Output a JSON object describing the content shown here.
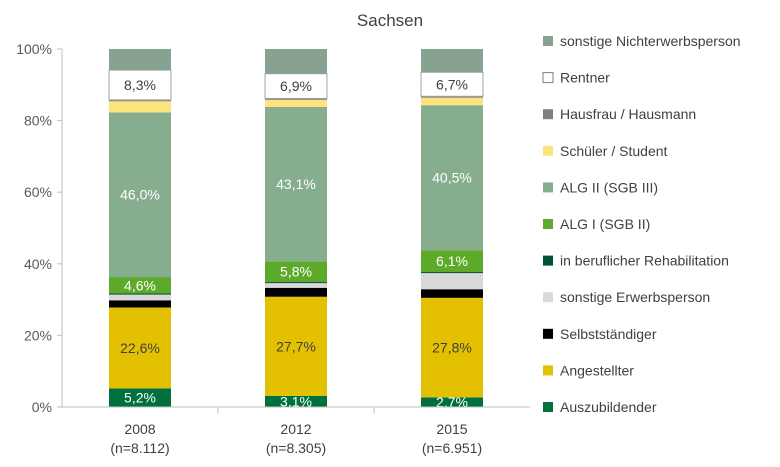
{
  "chart_data": {
    "type": "bar",
    "stacked": true,
    "title": "Sachsen",
    "xlabel": "",
    "ylabel": "",
    "ylim": [
      0,
      100
    ],
    "yticks": [
      "0%",
      "20%",
      "40%",
      "60%",
      "80%",
      "100%"
    ],
    "grid": false,
    "legend_position": "right",
    "categories": [
      {
        "label": "2008",
        "sub": "(n=8.112)"
      },
      {
        "label": "2012",
        "sub": "(n=8.305)"
      },
      {
        "label": "2015",
        "sub": "(n=6.951)"
      }
    ],
    "series": [
      {
        "name": "Auszubildender",
        "color": "#00703C",
        "values": [
          5.2,
          3.1,
          2.7
        ],
        "labels": [
          "5,2%",
          "3,1%",
          "2,7%"
        ],
        "label_color": "#ffffff"
      },
      {
        "name": "Angestellter",
        "color": "#E3C000",
        "values": [
          22.6,
          27.7,
          27.8
        ],
        "labels": [
          "22,6%",
          "27,7%",
          "27,8%"
        ],
        "label_color": "#404040"
      },
      {
        "name": "Selbstständiger",
        "color": "#000000",
        "values": [
          2.0,
          2.5,
          2.4
        ],
        "labels": [
          "",
          "",
          ""
        ],
        "label_color": "#ffffff"
      },
      {
        "name": "sonstige Erwerbsperson",
        "color": "#D9D9D9",
        "values": [
          1.6,
          1.3,
          4.5
        ],
        "labels": [
          "",
          "",
          ""
        ],
        "label_color": "#404040"
      },
      {
        "name": "in beruflicher Rehabilitation",
        "color": "#00513A",
        "values": [
          0.3,
          0.3,
          0.3
        ],
        "labels": [
          "",
          "",
          ""
        ],
        "label_color": "#ffffff"
      },
      {
        "name": "ALG I (SGB II)",
        "color": "#5DAA2B",
        "values": [
          4.6,
          5.8,
          6.1
        ],
        "labels": [
          "4,6%",
          "5,8%",
          "6,1%"
        ],
        "label_color": "#ffffff"
      },
      {
        "name": "ALG II (SGB III)",
        "color": "#86AD8E",
        "values": [
          46.0,
          43.1,
          40.5
        ],
        "labels": [
          "46,0%",
          "43,1%",
          "40,5%"
        ],
        "label_color": "#ffffff"
      },
      {
        "name": "Schüler / Student",
        "color": "#FCE37B",
        "values": [
          3.1,
          2.0,
          2.1
        ],
        "labels": [
          "",
          "",
          ""
        ],
        "label_color": "#404040"
      },
      {
        "name": "Hausfrau / Hausmann",
        "color": "#7F7F7F",
        "values": [
          0.4,
          0.4,
          0.4
        ],
        "labels": [
          "",
          "",
          ""
        ],
        "label_color": "#ffffff"
      },
      {
        "name": "Rentner",
        "color": "#FFFFFF",
        "values": [
          8.3,
          6.9,
          6.7
        ],
        "labels": [
          "8,3%",
          "6,9%",
          "6,7%"
        ],
        "label_color": "#404040"
      },
      {
        "name": "sonstige Nichterwerbsperson",
        "color": "#86A290",
        "values": [
          5.9,
          6.9,
          6.5
        ],
        "labels": [
          "",
          "",
          ""
        ],
        "label_color": "#ffffff"
      }
    ],
    "legend_order": [
      "sonstige Nichterwerbsperson",
      "Rentner",
      "Hausfrau / Hausmann",
      "Schüler / Student",
      "ALG II (SGB III)",
      "ALG I (SGB II)",
      "in beruflicher Rehabilitation",
      "sonstige Erwerbsperson",
      "Selbstständiger",
      "Angestellter",
      "Auszubildender"
    ]
  }
}
